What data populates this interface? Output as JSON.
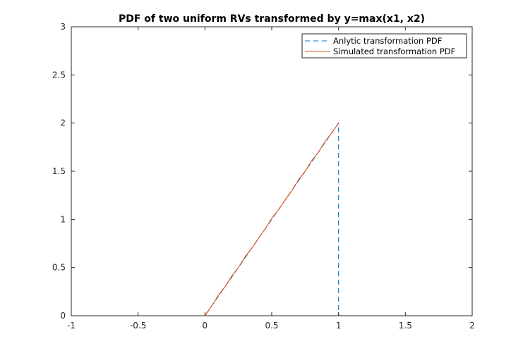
{
  "chart_data": {
    "type": "line",
    "title": "PDF of two uniform RVs transformed by y=max(x1, x2)",
    "xlabel": "",
    "ylabel": "",
    "xlim": [
      -1,
      2
    ],
    "ylim": [
      0,
      3
    ],
    "xticks": [
      -1,
      -0.5,
      0,
      0.5,
      1,
      1.5,
      2
    ],
    "xtick_labels": [
      "-1",
      "-0.5",
      "0",
      "0.5",
      "1",
      "1.5",
      "2"
    ],
    "yticks": [
      0,
      0.5,
      1,
      1.5,
      2,
      2.5,
      3
    ],
    "ytick_labels": [
      "0",
      "0.5",
      "1",
      "1.5",
      "2",
      "2.5",
      "3"
    ],
    "grid": false,
    "legend_position": "top-right",
    "series": [
      {
        "name": "Anlytic transformation PDF",
        "color": "#0072bd",
        "style": "dashed",
        "x": [
          -1,
          0,
          1,
          1,
          2
        ],
        "y": [
          0,
          0,
          2,
          0,
          0
        ]
      },
      {
        "name": "Simulated transformation PDF",
        "color": "#d95319",
        "style": "solid",
        "x": [
          0,
          0.05,
          0.1,
          0.15,
          0.2,
          0.25,
          0.3,
          0.35,
          0.4,
          0.45,
          0.5,
          0.55,
          0.6,
          0.65,
          0.7,
          0.75,
          0.8,
          0.85,
          0.9,
          0.95,
          1
        ],
        "y": [
          0,
          0.1,
          0.21,
          0.3,
          0.41,
          0.5,
          0.61,
          0.7,
          0.8,
          0.9,
          1.01,
          1.1,
          1.2,
          1.3,
          1.41,
          1.5,
          1.61,
          1.7,
          1.81,
          1.9,
          2.0
        ]
      }
    ]
  }
}
